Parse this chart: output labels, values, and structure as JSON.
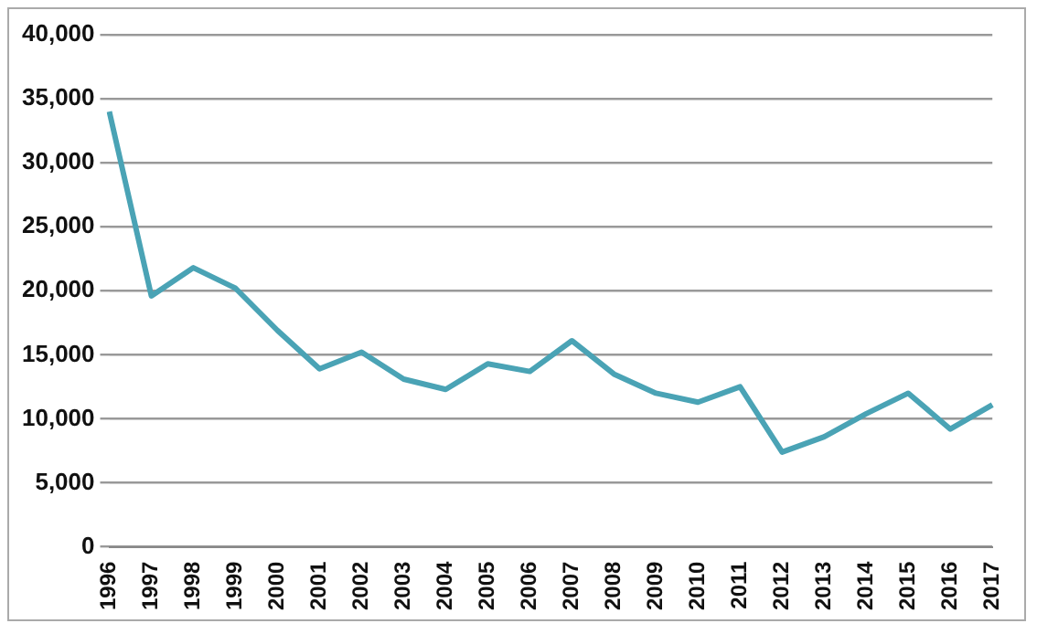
{
  "chart_data": {
    "type": "line",
    "categories": [
      "1996",
      "1997",
      "1998",
      "1999",
      "2000",
      "2001",
      "2002",
      "2003",
      "2004",
      "2005",
      "2006",
      "2007",
      "2008",
      "2009",
      "2010",
      "2011",
      "2012",
      "2013",
      "2014",
      "2015",
      "2016",
      "2017"
    ],
    "series": [
      {
        "color": "#4aa3b5",
        "values": [
          34000,
          19600,
          21800,
          20200,
          16900,
          13900,
          15200,
          13100,
          12300,
          14300,
          13700,
          16100,
          13500,
          12000,
          11300,
          12500,
          7400,
          8600,
          10400,
          12000,
          9200,
          11100
        ]
      }
    ],
    "ylim": [
      0,
      40000
    ],
    "yticks": [
      {
        "value": 0,
        "label": "0"
      },
      {
        "value": 5000,
        "label": "5,000"
      },
      {
        "value": 10000,
        "label": "10,000"
      },
      {
        "value": 15000,
        "label": "15,000"
      },
      {
        "value": 20000,
        "label": "20,000"
      },
      {
        "value": 25000,
        "label": "25,000"
      },
      {
        "value": 30000,
        "label": "30,000"
      },
      {
        "value": 35000,
        "label": "35,000"
      },
      {
        "value": 40000,
        "label": "40,000"
      }
    ],
    "grid": "y",
    "legend": false,
    "marker": "none",
    "line_style": "solid"
  }
}
